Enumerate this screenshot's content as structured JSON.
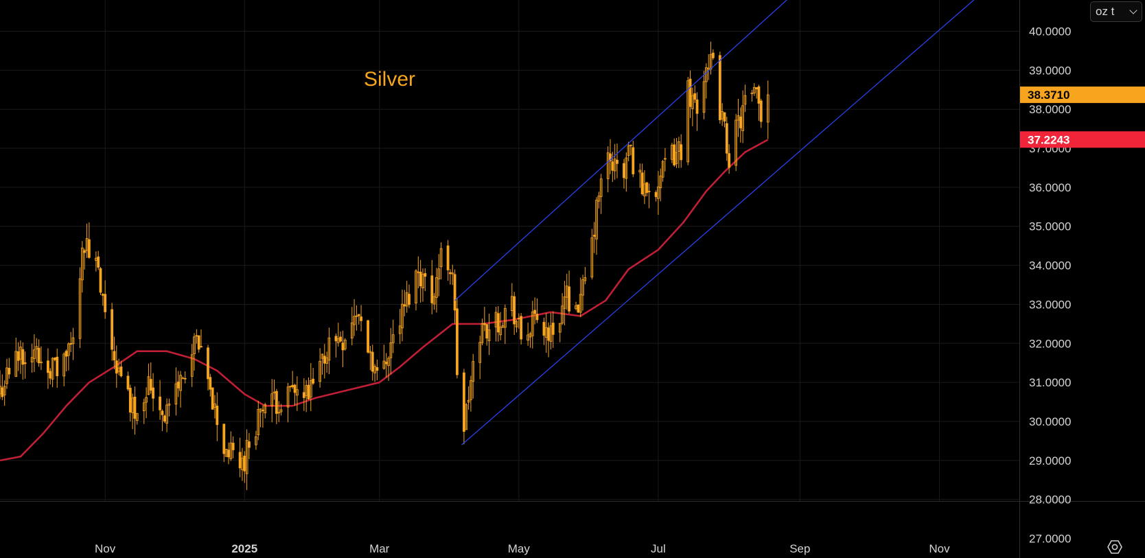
{
  "unit_selector": {
    "label": "oz t"
  },
  "settings": {
    "icon": "settings-icon"
  },
  "chart_data": {
    "type": "candlestick",
    "title": "Silver",
    "colors": {
      "candle": "#f7a51f",
      "moving_average": "#c01f36",
      "channel": "#2a45ff",
      "title": "#f7a51f",
      "last_price_tag": "#f7a51f",
      "ma_tag": "#f0253a",
      "grid": "#1a1a1a"
    },
    "y_axis": {
      "range": [
        26.5,
        40.8
      ],
      "ticks": [
        27,
        28,
        29,
        30,
        31,
        32,
        33,
        34,
        35,
        36,
        37,
        38,
        39,
        40
      ],
      "tick_labels": [
        "27.0000",
        "28.0000",
        "29.0000",
        "30.0000",
        "31.0000",
        "32.0000",
        "33.0000",
        "34.0000",
        "35.0000",
        "36.0000",
        "37.0000",
        "38.0000",
        "39.0000",
        "40.0000"
      ]
    },
    "x_axis": {
      "range": [
        "2024-09-16",
        "2025-12-06"
      ],
      "ticks": [
        "2024-11-01",
        "2025-01-01",
        "2025-03-01",
        "2025-05-01",
        "2025-07-01",
        "2025-09-01",
        "2025-11-01"
      ],
      "tick_labels": [
        "Nov",
        "2025",
        "Mar",
        "May",
        "Jul",
        "Sep",
        "Nov"
      ]
    },
    "price_waypoints": [
      [
        "2024-09-16",
        30.8
      ],
      [
        "2024-09-25",
        31.8
      ],
      [
        "2024-10-02",
        31.7
      ],
      [
        "2024-10-11",
        31.3
      ],
      [
        "2024-10-18",
        32.0
      ],
      [
        "2024-10-22",
        34.6
      ],
      [
        "2024-10-28",
        34.0
      ],
      [
        "2024-11-01",
        32.6
      ],
      [
        "2024-11-08",
        31.0
      ],
      [
        "2024-11-14",
        30.3
      ],
      [
        "2024-11-20",
        31.0
      ],
      [
        "2024-11-27",
        30.2
      ],
      [
        "2024-12-06",
        31.3
      ],
      [
        "2024-12-11",
        32.0
      ],
      [
        "2024-12-18",
        30.5
      ],
      [
        "2024-12-23",
        29.3
      ],
      [
        "2024-12-31",
        28.9
      ],
      [
        "2025-01-08",
        30.3
      ],
      [
        "2025-01-15",
        30.5
      ],
      [
        "2025-01-22",
        30.7
      ],
      [
        "2025-01-29",
        30.6
      ],
      [
        "2025-02-07",
        32.0
      ],
      [
        "2025-02-14",
        32.2
      ],
      [
        "2025-02-19",
        32.8
      ],
      [
        "2025-02-25",
        31.8
      ],
      [
        "2025-02-28",
        31.1
      ],
      [
        "2025-03-10",
        32.6
      ],
      [
        "2025-03-18",
        33.9
      ],
      [
        "2025-03-24",
        33.2
      ],
      [
        "2025-03-28",
        34.2
      ],
      [
        "2025-04-02",
        33.9
      ],
      [
        "2025-04-04",
        31.3
      ],
      [
        "2025-04-07",
        29.8
      ],
      [
        "2025-04-09",
        30.6
      ],
      [
        "2025-04-14",
        32.3
      ],
      [
        "2025-04-22",
        32.6
      ],
      [
        "2025-04-28",
        33.0
      ],
      [
        "2025-05-02",
        32.1
      ],
      [
        "2025-05-09",
        32.6
      ],
      [
        "2025-05-15",
        32.2
      ],
      [
        "2025-05-22",
        33.2
      ],
      [
        "2025-05-28",
        33.0
      ],
      [
        "2025-06-02",
        34.5
      ],
      [
        "2025-06-05",
        35.8
      ],
      [
        "2025-06-09",
        36.7
      ],
      [
        "2025-06-16",
        36.3
      ],
      [
        "2025-06-18",
        37.0
      ],
      [
        "2025-06-24",
        36.0
      ],
      [
        "2025-07-01",
        36.1
      ],
      [
        "2025-07-07",
        36.8
      ],
      [
        "2025-07-11",
        37.0
      ],
      [
        "2025-07-14",
        38.5
      ],
      [
        "2025-07-18",
        38.1
      ],
      [
        "2025-07-23",
        39.4
      ],
      [
        "2025-07-25",
        39.0
      ],
      [
        "2025-07-28",
        38.0
      ],
      [
        "2025-08-01",
        36.8
      ],
      [
        "2025-08-04",
        37.4
      ],
      [
        "2025-08-08",
        38.1
      ],
      [
        "2025-08-13",
        38.3
      ],
      [
        "2025-08-15",
        37.9
      ],
      [
        "2025-08-18",
        38.37
      ]
    ],
    "moving_average": [
      [
        "2024-09-16",
        29.0
      ],
      [
        "2024-09-25",
        29.1
      ],
      [
        "2024-10-05",
        29.7
      ],
      [
        "2024-10-15",
        30.4
      ],
      [
        "2024-10-25",
        31.0
      ],
      [
        "2024-11-05",
        31.4
      ],
      [
        "2024-11-15",
        31.8
      ],
      [
        "2024-11-28",
        31.8
      ],
      [
        "2024-12-10",
        31.6
      ],
      [
        "2024-12-20",
        31.3
      ],
      [
        "2025-01-01",
        30.7
      ],
      [
        "2025-01-10",
        30.4
      ],
      [
        "2025-01-22",
        30.4
      ],
      [
        "2025-02-01",
        30.6
      ],
      [
        "2025-02-15",
        30.8
      ],
      [
        "2025-03-01",
        31.0
      ],
      [
        "2025-03-10",
        31.4
      ],
      [
        "2025-03-20",
        31.9
      ],
      [
        "2025-04-02",
        32.5
      ],
      [
        "2025-04-15",
        32.5
      ],
      [
        "2025-04-28",
        32.6
      ],
      [
        "2025-05-15",
        32.8
      ],
      [
        "2025-05-28",
        32.7
      ],
      [
        "2025-06-08",
        33.1
      ],
      [
        "2025-06-18",
        33.9
      ],
      [
        "2025-07-01",
        34.4
      ],
      [
        "2025-07-12",
        35.1
      ],
      [
        "2025-07-22",
        35.9
      ],
      [
        "2025-07-30",
        36.4
      ],
      [
        "2025-08-08",
        36.9
      ],
      [
        "2025-08-18",
        37.22
      ]
    ],
    "channel_lines": [
      {
        "from": [
          "2025-04-03",
          33.1
        ],
        "to": [
          "2025-08-30",
          41.0
        ]
      },
      {
        "from": [
          "2025-04-06",
          29.4
        ],
        "to": [
          "2025-11-20",
          41.0
        ]
      }
    ],
    "last_price": {
      "label": "38.3710",
      "value": 38.371
    },
    "ma_value": {
      "label": "37.2243",
      "value": 37.2243
    }
  }
}
